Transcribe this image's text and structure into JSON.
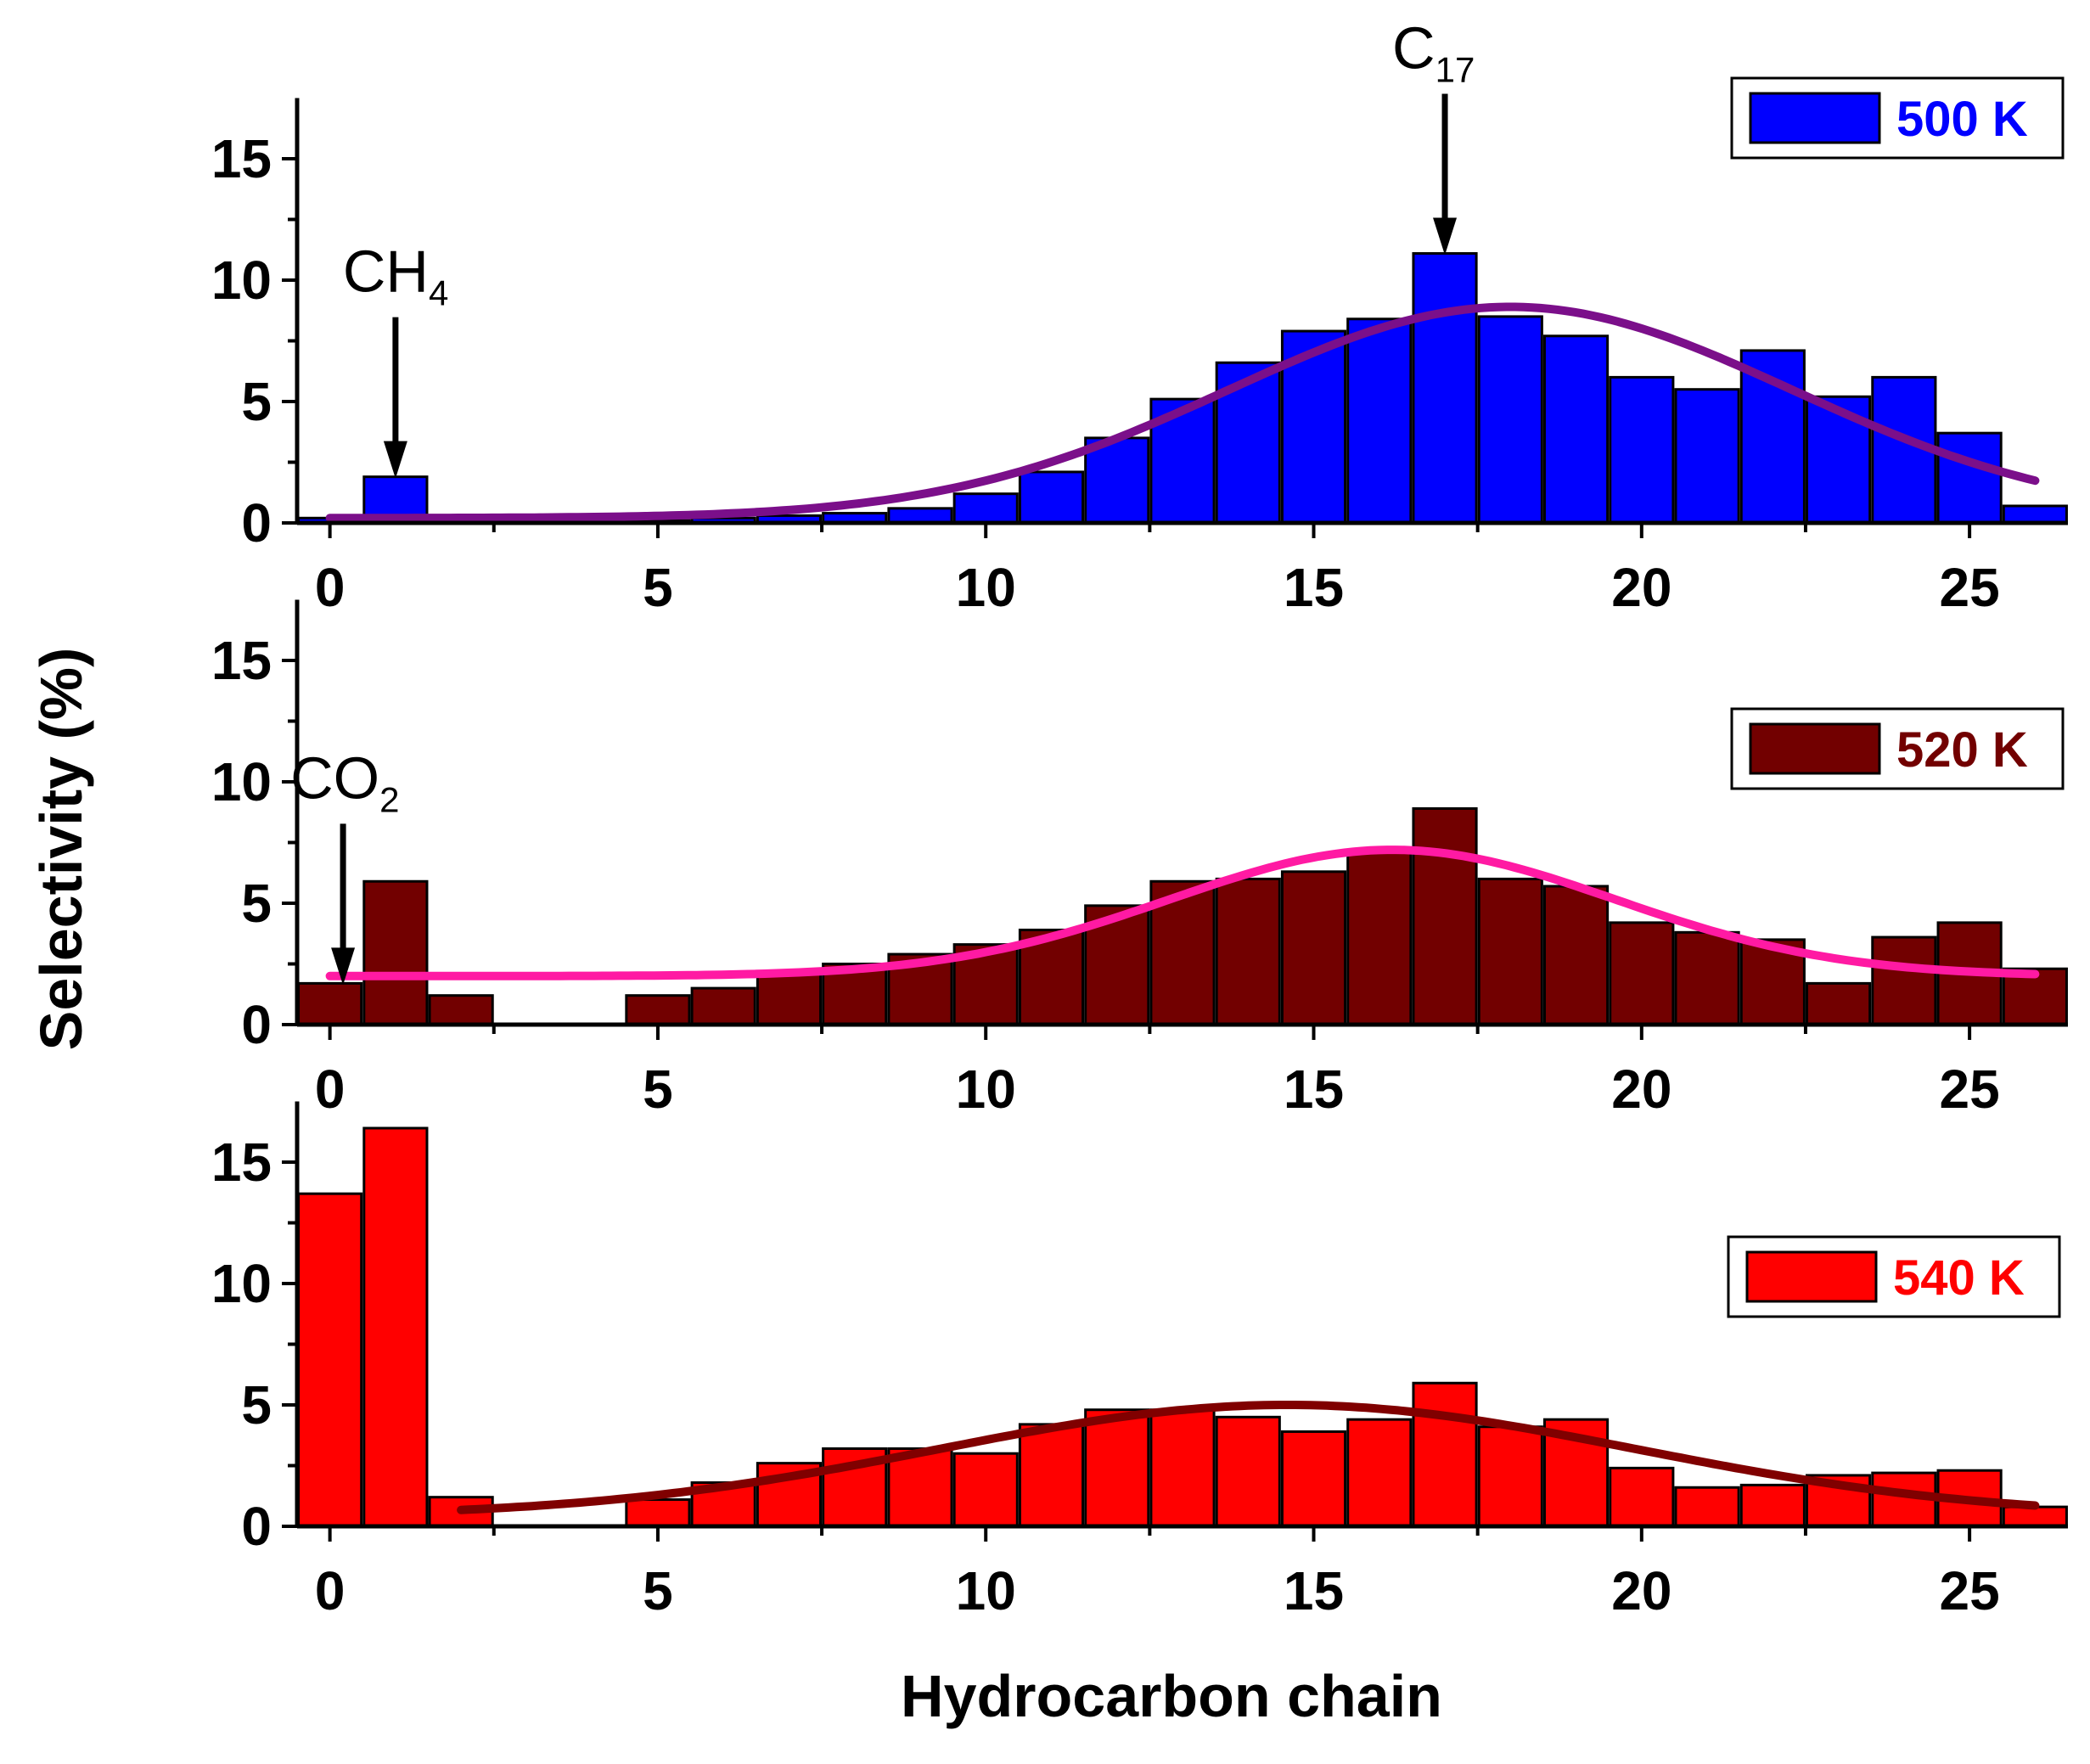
{
  "chart_data": {
    "type": "bar",
    "ylabel": "Selectivity (%)",
    "xlabel": "Hydrocarbon chain",
    "xlim": [
      -0.5,
      26.5
    ],
    "ylim": [
      0,
      17.5
    ],
    "xticks": [
      0,
      5,
      10,
      15,
      20,
      25
    ],
    "yticks": [
      0,
      5,
      10,
      15
    ],
    "panels": [
      {
        "legend": "500 K",
        "legend_position": "top-right",
        "bar_color": "#0000ff",
        "fit_color": "#7b0f8a",
        "categories": [
          0,
          1,
          2,
          3,
          4,
          5,
          6,
          7,
          8,
          9,
          10,
          11,
          12,
          13,
          14,
          15,
          16,
          17,
          18,
          19,
          20,
          21,
          22,
          23,
          24,
          25,
          26
        ],
        "values": [
          0.2,
          1.9,
          0.1,
          0.1,
          0.1,
          0.1,
          0.2,
          0.3,
          0.4,
          0.6,
          1.2,
          2.1,
          3.5,
          5.1,
          6.6,
          7.9,
          8.4,
          11.1,
          8.5,
          7.7,
          6.0,
          5.5,
          7.1,
          5.2,
          6.0,
          3.7,
          0.7
        ],
        "fit": {
          "start": 0,
          "end": 26,
          "baseline": 0.2,
          "amplitude": 8.7,
          "center": 18,
          "sigma": 4.3
        },
        "annotations": [
          {
            "label": "CH",
            "sub": "4",
            "x": 1
          },
          {
            "label": "C",
            "sub": "17",
            "x": 17
          }
        ]
      },
      {
        "legend": "520 K",
        "legend_position": "top-right",
        "bar_color": "#720000",
        "fit_color": "#ff1aa3",
        "categories": [
          0,
          1,
          2,
          3,
          4,
          5,
          6,
          7,
          8,
          9,
          10,
          11,
          12,
          13,
          14,
          15,
          16,
          17,
          18,
          19,
          20,
          21,
          22,
          23,
          24,
          25,
          26
        ],
        "values": [
          1.7,
          5.9,
          1.2,
          0,
          0,
          1.2,
          1.5,
          2.1,
          2.5,
          2.9,
          3.3,
          3.9,
          4.9,
          5.9,
          6.0,
          6.3,
          7.1,
          8.9,
          6.0,
          5.7,
          4.2,
          3.8,
          3.5,
          1.7,
          3.6,
          4.2,
          2.3
        ],
        "fit": {
          "start": 0,
          "end": 26,
          "baseline": 2.0,
          "amplitude": 5.2,
          "center": 16.2,
          "sigma": 3.4
        },
        "annotations": [
          {
            "label": "CO",
            "sub": "2",
            "x": 0.2
          }
        ]
      },
      {
        "legend": "540 K",
        "legend_position": "top-right",
        "bar_color": "#ff0000",
        "fit_color": "#800000",
        "categories": [
          0,
          1,
          2,
          3,
          4,
          5,
          6,
          7,
          8,
          9,
          10,
          11,
          12,
          13,
          14,
          15,
          16,
          17,
          18,
          19,
          20,
          21,
          22,
          23,
          24,
          25,
          26
        ],
        "values": [
          13.7,
          16.4,
          1.2,
          0,
          0,
          1.1,
          1.8,
          2.6,
          3.2,
          3.2,
          3.0,
          4.2,
          4.8,
          4.8,
          4.5,
          3.9,
          4.4,
          5.9,
          4.1,
          4.4,
          2.4,
          1.6,
          1.7,
          2.1,
          2.2,
          2.3,
          0.8
        ],
        "fit": {
          "start": 2,
          "end": 26,
          "baseline": 0.4,
          "amplitude": 4.6,
          "center": 14.6,
          "sigma": 5.3
        },
        "annotations": []
      }
    ]
  }
}
